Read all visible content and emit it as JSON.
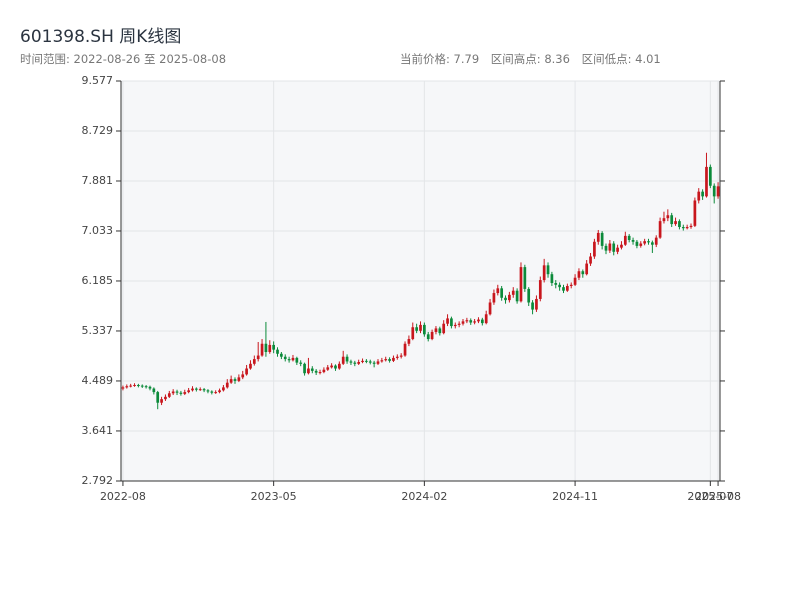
{
  "chart_data": {
    "type": "candlestick",
    "title": "601398.SH 周K线图",
    "subtitle": "时间范围: 2022-08-26 至 2025-08-08",
    "stats": [
      "当前价格: 7.79",
      "区间高点: 8.36",
      "区间低点: 4.01"
    ],
    "up_color": "#c8161d",
    "down_color": "#0b8a3a",
    "grid": true,
    "ylim": [
      2.792,
      9.577
    ],
    "yticks": [
      2.792,
      3.641,
      4.489,
      5.337,
      6.185,
      7.033,
      7.881,
      8.729,
      9.577
    ],
    "categories": [
      "2022-08",
      null,
      null,
      null,
      null,
      null,
      null,
      null,
      null,
      null,
      null,
      null,
      null,
      null,
      null,
      null,
      null,
      null,
      null,
      null,
      null,
      null,
      null,
      null,
      null,
      null,
      null,
      null,
      null,
      null,
      null,
      null,
      null,
      null,
      null,
      null,
      null,
      null,
      null,
      "2023-05",
      null,
      null,
      null,
      null,
      null,
      null,
      null,
      null,
      null,
      null,
      null,
      null,
      null,
      null,
      null,
      null,
      null,
      null,
      null,
      null,
      null,
      null,
      null,
      null,
      null,
      null,
      null,
      null,
      null,
      null,
      null,
      null,
      null,
      null,
      null,
      null,
      null,
      null,
      "2024-02",
      null,
      null,
      null,
      null,
      null,
      null,
      null,
      null,
      null,
      null,
      null,
      null,
      null,
      null,
      null,
      null,
      null,
      null,
      null,
      null,
      null,
      null,
      null,
      null,
      null,
      null,
      null,
      null,
      null,
      null,
      null,
      null,
      null,
      null,
      null,
      null,
      null,
      null,
      "2024-11",
      null,
      null,
      null,
      null,
      null,
      null,
      null,
      null,
      null,
      null,
      null,
      null,
      null,
      null,
      null,
      null,
      null,
      null,
      null,
      null,
      null,
      null,
      null,
      null,
      null,
      null,
      null,
      null,
      null,
      null,
      null,
      null,
      null,
      null,
      "2025-07",
      null,
      "2025-08"
    ],
    "values": [
      [
        4.36,
        4.41,
        4.33,
        4.38
      ],
      [
        4.38,
        4.43,
        4.36,
        4.4
      ],
      [
        4.4,
        4.44,
        4.38,
        4.41
      ],
      [
        4.41,
        4.45,
        4.39,
        4.42
      ],
      [
        4.42,
        4.44,
        4.38,
        4.41
      ],
      [
        4.41,
        4.43,
        4.37,
        4.4
      ],
      [
        4.4,
        4.42,
        4.36,
        4.39
      ],
      [
        4.39,
        4.41,
        4.33,
        4.36
      ],
      [
        4.36,
        4.38,
        4.26,
        4.3
      ],
      [
        4.3,
        4.32,
        4.01,
        4.12
      ],
      [
        4.12,
        4.22,
        4.08,
        4.18
      ],
      [
        4.18,
        4.26,
        4.15,
        4.22
      ],
      [
        4.22,
        4.32,
        4.2,
        4.28
      ],
      [
        4.28,
        4.35,
        4.25,
        4.31
      ],
      [
        4.31,
        4.34,
        4.25,
        4.29
      ],
      [
        4.29,
        4.32,
        4.24,
        4.27
      ],
      [
        4.27,
        4.34,
        4.25,
        4.3
      ],
      [
        4.3,
        4.37,
        4.28,
        4.33
      ],
      [
        4.33,
        4.4,
        4.31,
        4.36
      ],
      [
        4.36,
        4.38,
        4.31,
        4.34
      ],
      [
        4.34,
        4.38,
        4.32,
        4.35
      ],
      [
        4.35,
        4.37,
        4.3,
        4.33
      ],
      [
        4.33,
        4.35,
        4.28,
        4.31
      ],
      [
        4.31,
        4.33,
        4.26,
        4.29
      ],
      [
        4.29,
        4.33,
        4.27,
        4.3
      ],
      [
        4.3,
        4.36,
        4.28,
        4.33
      ],
      [
        4.33,
        4.42,
        4.31,
        4.38
      ],
      [
        4.38,
        4.52,
        4.36,
        4.46
      ],
      [
        4.46,
        4.58,
        4.44,
        4.52
      ],
      [
        4.52,
        4.55,
        4.44,
        4.49
      ],
      [
        4.49,
        4.6,
        4.47,
        4.55
      ],
      [
        4.55,
        4.66,
        4.52,
        4.6
      ],
      [
        4.6,
        4.76,
        4.58,
        4.7
      ],
      [
        4.7,
        4.84,
        4.68,
        4.78
      ],
      [
        4.78,
        4.92,
        4.75,
        4.86
      ],
      [
        4.86,
        5.15,
        4.82,
        4.92
      ],
      [
        4.92,
        5.2,
        4.9,
        5.12
      ],
      [
        5.12,
        5.49,
        4.9,
        4.98
      ],
      [
        4.98,
        5.18,
        4.95,
        5.1
      ],
      [
        5.1,
        5.16,
        4.96,
        5.02
      ],
      [
        5.02,
        5.06,
        4.9,
        4.95
      ],
      [
        4.95,
        4.98,
        4.86,
        4.9
      ],
      [
        4.9,
        4.94,
        4.82,
        4.86
      ],
      [
        4.86,
        4.9,
        4.8,
        4.84
      ],
      [
        4.84,
        4.93,
        4.82,
        4.88
      ],
      [
        4.88,
        4.9,
        4.76,
        4.8
      ],
      [
        4.8,
        4.84,
        4.74,
        4.78
      ],
      [
        4.78,
        4.8,
        4.58,
        4.62
      ],
      [
        4.62,
        4.88,
        4.6,
        4.7
      ],
      [
        4.7,
        4.74,
        4.62,
        4.66
      ],
      [
        4.66,
        4.69,
        4.59,
        4.63
      ],
      [
        4.63,
        4.68,
        4.6,
        4.64
      ],
      [
        4.64,
        4.72,
        4.62,
        4.68
      ],
      [
        4.68,
        4.76,
        4.66,
        4.72
      ],
      [
        4.72,
        4.79,
        4.7,
        4.75
      ],
      [
        4.75,
        4.77,
        4.66,
        4.7
      ],
      [
        4.7,
        4.82,
        4.68,
        4.78
      ],
      [
        4.78,
        5.0,
        4.76,
        4.9
      ],
      [
        4.9,
        4.94,
        4.78,
        4.82
      ],
      [
        4.82,
        4.85,
        4.76,
        4.8
      ],
      [
        4.8,
        4.83,
        4.74,
        4.78
      ],
      [
        4.78,
        4.85,
        4.76,
        4.81
      ],
      [
        4.81,
        4.87,
        4.79,
        4.83
      ],
      [
        4.83,
        4.86,
        4.79,
        4.82
      ],
      [
        4.82,
        4.85,
        4.77,
        4.8
      ],
      [
        4.8,
        4.83,
        4.72,
        4.78
      ],
      [
        4.78,
        4.86,
        4.76,
        4.82
      ],
      [
        4.82,
        4.88,
        4.8,
        4.84
      ],
      [
        4.84,
        4.9,
        4.82,
        4.86
      ],
      [
        4.86,
        4.89,
        4.8,
        4.83
      ],
      [
        4.83,
        4.92,
        4.81,
        4.88
      ],
      [
        4.88,
        4.94,
        4.85,
        4.9
      ],
      [
        4.9,
        4.96,
        4.87,
        4.92
      ],
      [
        4.92,
        5.16,
        4.9,
        5.12
      ],
      [
        5.12,
        5.26,
        5.08,
        5.2
      ],
      [
        5.2,
        5.48,
        5.18,
        5.4
      ],
      [
        5.4,
        5.46,
        5.3,
        5.34
      ],
      [
        5.34,
        5.5,
        5.3,
        5.44
      ],
      [
        5.44,
        5.48,
        5.24,
        5.28
      ],
      [
        5.28,
        5.32,
        5.16,
        5.2
      ],
      [
        5.2,
        5.36,
        5.18,
        5.32
      ],
      [
        5.32,
        5.42,
        5.28,
        5.38
      ],
      [
        5.38,
        5.41,
        5.26,
        5.3
      ],
      [
        5.3,
        5.52,
        5.28,
        5.46
      ],
      [
        5.46,
        5.62,
        5.42,
        5.55
      ],
      [
        5.55,
        5.58,
        5.38,
        5.42
      ],
      [
        5.42,
        5.48,
        5.38,
        5.44
      ],
      [
        5.44,
        5.5,
        5.4,
        5.46
      ],
      [
        5.46,
        5.54,
        5.43,
        5.5
      ],
      [
        5.5,
        5.56,
        5.47,
        5.52
      ],
      [
        5.52,
        5.55,
        5.44,
        5.48
      ],
      [
        5.48,
        5.54,
        5.45,
        5.5
      ],
      [
        5.5,
        5.57,
        5.47,
        5.53
      ],
      [
        5.53,
        5.56,
        5.43,
        5.47
      ],
      [
        5.47,
        5.68,
        5.45,
        5.62
      ],
      [
        5.62,
        5.88,
        5.6,
        5.82
      ],
      [
        5.82,
        6.04,
        5.78,
        5.98
      ],
      [
        5.98,
        6.12,
        5.94,
        6.06
      ],
      [
        6.06,
        6.1,
        5.85,
        5.9
      ],
      [
        5.9,
        5.94,
        5.8,
        5.86
      ],
      [
        5.86,
        6.0,
        5.82,
        5.95
      ],
      [
        5.95,
        6.08,
        5.9,
        6.02
      ],
      [
        6.02,
        6.06,
        5.8,
        5.84
      ],
      [
        5.84,
        6.5,
        5.82,
        6.42
      ],
      [
        6.42,
        6.46,
        6.0,
        6.05
      ],
      [
        6.05,
        6.08,
        5.76,
        5.82
      ],
      [
        5.82,
        5.86,
        5.62,
        5.7
      ],
      [
        5.7,
        5.94,
        5.66,
        5.88
      ],
      [
        5.88,
        6.26,
        5.84,
        6.2
      ],
      [
        6.2,
        6.56,
        6.16,
        6.45
      ],
      [
        6.45,
        6.5,
        6.24,
        6.3
      ],
      [
        6.3,
        6.34,
        6.1,
        6.15
      ],
      [
        6.15,
        6.2,
        6.06,
        6.12
      ],
      [
        6.12,
        6.16,
        6.02,
        6.08
      ],
      [
        6.08,
        6.12,
        5.98,
        6.02
      ],
      [
        6.02,
        6.14,
        6.0,
        6.1
      ],
      [
        6.1,
        6.16,
        6.06,
        6.12
      ],
      [
        6.12,
        6.3,
        6.1,
        6.24
      ],
      [
        6.24,
        6.4,
        6.2,
        6.35
      ],
      [
        6.35,
        6.38,
        6.24,
        6.3
      ],
      [
        6.3,
        6.54,
        6.28,
        6.48
      ],
      [
        6.48,
        6.66,
        6.44,
        6.6
      ],
      [
        6.6,
        6.9,
        6.56,
        6.85
      ],
      [
        6.85,
        7.05,
        6.8,
        7.0
      ],
      [
        7.0,
        7.03,
        6.72,
        6.78
      ],
      [
        6.78,
        6.82,
        6.64,
        6.7
      ],
      [
        6.7,
        6.88,
        6.66,
        6.82
      ],
      [
        6.82,
        6.86,
        6.62,
        6.68
      ],
      [
        6.68,
        6.8,
        6.64,
        6.75
      ],
      [
        6.75,
        6.86,
        6.72,
        6.8
      ],
      [
        6.8,
        7.02,
        6.78,
        6.95
      ],
      [
        6.95,
        6.98,
        6.84,
        6.88
      ],
      [
        6.88,
        6.92,
        6.8,
        6.85
      ],
      [
        6.85,
        6.88,
        6.74,
        6.78
      ],
      [
        6.78,
        6.86,
        6.75,
        6.82
      ],
      [
        6.82,
        6.9,
        6.79,
        6.86
      ],
      [
        6.86,
        6.9,
        6.8,
        6.84
      ],
      [
        6.84,
        6.87,
        6.66,
        6.8
      ],
      [
        6.8,
        6.96,
        6.76,
        6.92
      ],
      [
        6.92,
        7.26,
        6.9,
        7.2
      ],
      [
        7.2,
        7.36,
        7.16,
        7.25
      ],
      [
        7.25,
        7.4,
        7.2,
        7.3
      ],
      [
        7.3,
        7.34,
        7.1,
        7.15
      ],
      [
        7.15,
        7.26,
        7.12,
        7.2
      ],
      [
        7.2,
        7.23,
        7.06,
        7.1
      ],
      [
        7.1,
        7.14,
        7.04,
        7.08
      ],
      [
        7.08,
        7.14,
        7.06,
        7.1
      ],
      [
        7.1,
        7.16,
        7.07,
        7.12
      ],
      [
        7.12,
        7.6,
        7.1,
        7.55
      ],
      [
        7.55,
        7.76,
        7.5,
        7.7
      ],
      [
        7.7,
        7.74,
        7.56,
        7.62
      ],
      [
        7.62,
        8.36,
        7.6,
        8.12
      ],
      [
        8.12,
        8.16,
        7.76,
        7.8
      ],
      [
        7.8,
        7.84,
        7.5,
        7.62
      ],
      [
        7.62,
        7.86,
        7.58,
        7.79
      ]
    ]
  }
}
